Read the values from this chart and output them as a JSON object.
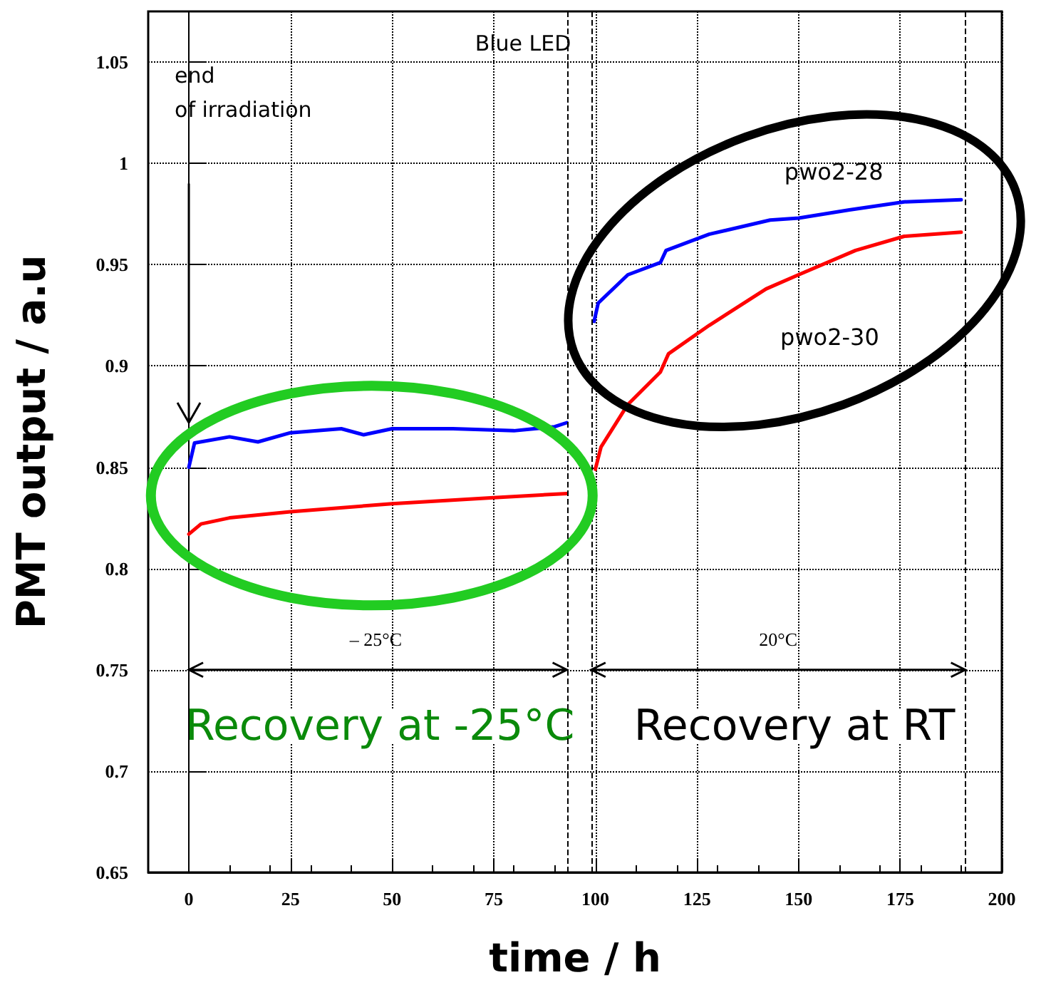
{
  "chart_data": {
    "type": "line",
    "title": "Blue LED",
    "xlabel": "time / h",
    "ylabel": "PMT output / a.u",
    "xlim": [
      -10,
      200
    ],
    "xticks": [
      0,
      25,
      50,
      75,
      100,
      125,
      150,
      175,
      200
    ],
    "ylim": [
      0.65,
      1.075
    ],
    "yticks": [
      0.65,
      0.7,
      0.75,
      0.8,
      0.85,
      0.9,
      0.95,
      1,
      1.05
    ],
    "grid": true,
    "legend": false,
    "marker": "none",
    "line_style": "solid",
    "series": [
      {
        "name": "pwo2-28",
        "color": "#0000ff",
        "x": [
          0,
          1.4,
          10,
          17,
          25,
          37.5,
          43,
          50,
          65,
          80,
          90,
          93,
          96,
          99.7,
          100.7,
          108,
          116,
          117.4,
          128,
          143,
          150,
          162.5,
          176,
          190
        ],
        "values": [
          0.85,
          0.862,
          0.865,
          0.8625,
          0.867,
          0.869,
          0.866,
          0.869,
          0.869,
          0.868,
          0.87,
          0.872,
          null,
          0.922,
          0.931,
          0.945,
          0.951,
          0.957,
          0.965,
          0.972,
          0.973,
          0.977,
          0.981,
          0.982
        ]
      },
      {
        "name": "pwo2-30",
        "color": "#ff0000",
        "x": [
          0,
          3,
          10,
          25,
          50,
          75,
          93,
          96,
          100,
          101.4,
          108,
          116,
          118,
          128,
          142,
          150,
          164,
          176,
          190
        ],
        "values": [
          0.817,
          0.822,
          0.825,
          0.828,
          0.832,
          0.835,
          0.837,
          null,
          0.849,
          0.86,
          0.881,
          0.897,
          0.906,
          0.92,
          0.938,
          0.945,
          0.957,
          0.964,
          0.966
        ]
      }
    ],
    "ref_lines": [
      {
        "axis": "x",
        "value": 93,
        "color": "#000000",
        "line_style": "dashed"
      },
      {
        "axis": "x",
        "value": 99,
        "color": "#000000",
        "line_style": "dashed"
      },
      {
        "axis": "x",
        "value": 191,
        "color": "#000000",
        "line_style": "dashed"
      }
    ],
    "annotations": [
      "end\nof irradiation",
      "– 25°C",
      "20°C",
      "Recovery at -25°C",
      "Recovery at RT"
    ]
  }
}
